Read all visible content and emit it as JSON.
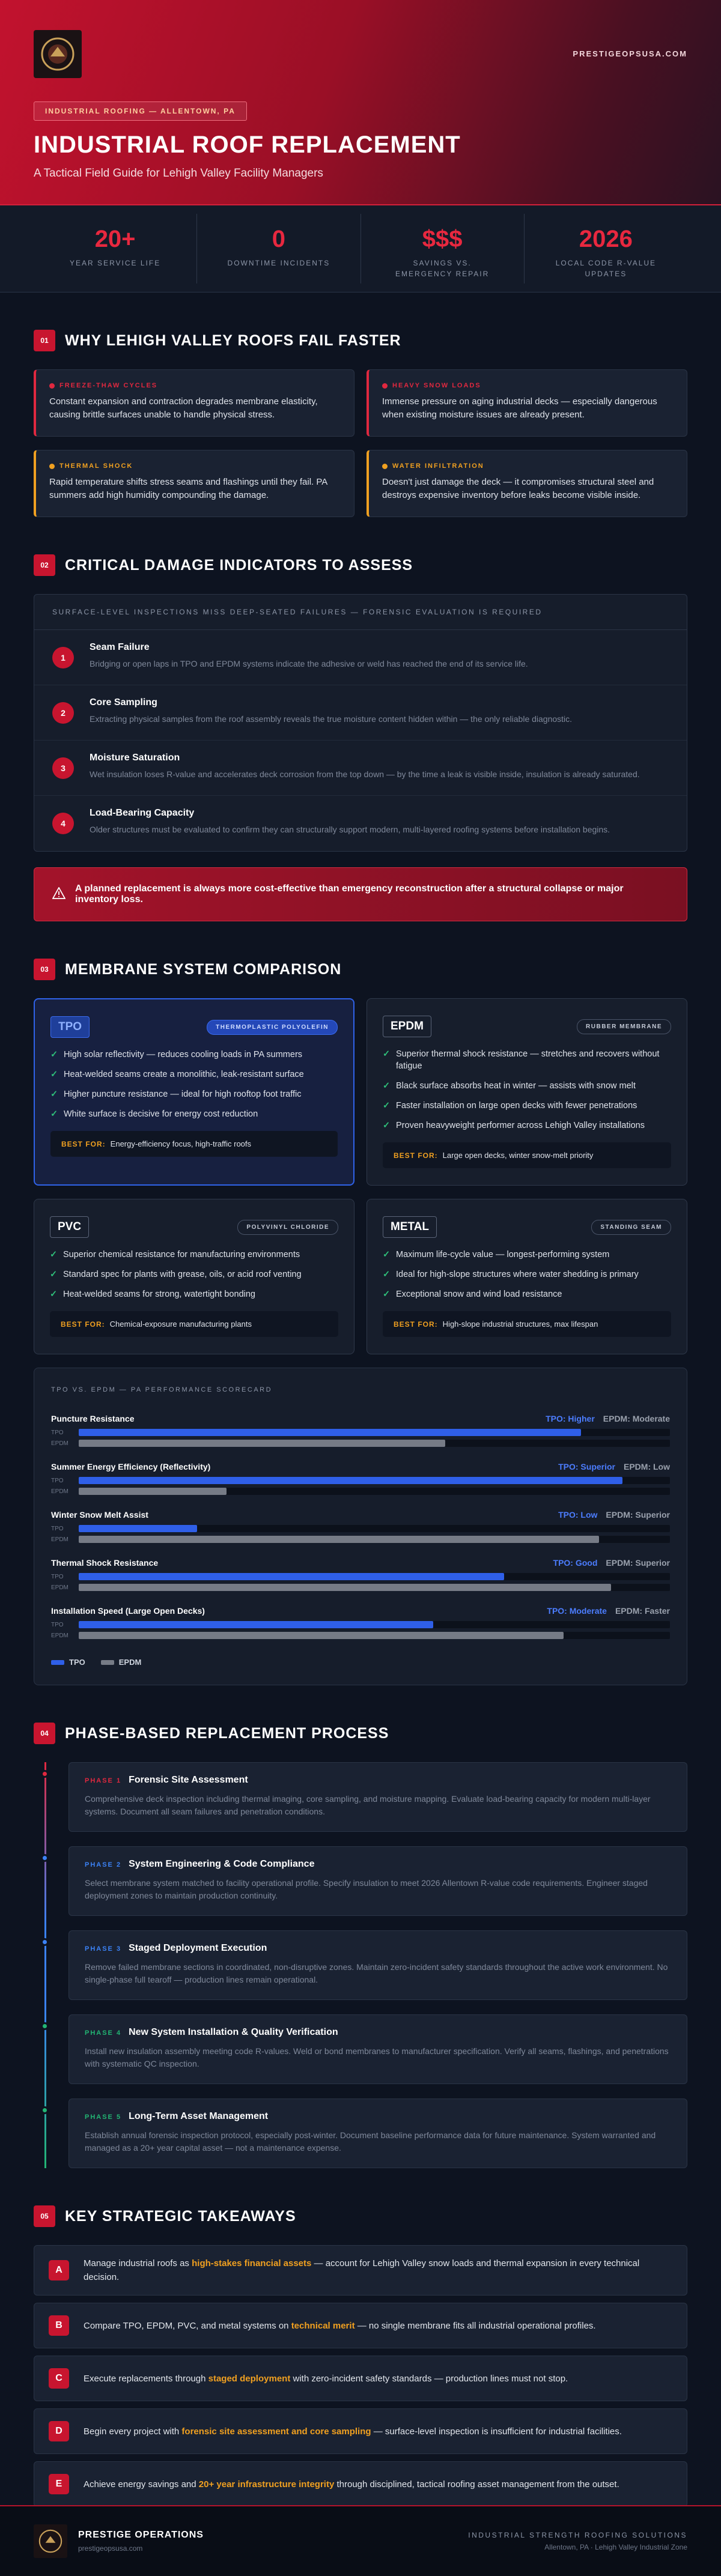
{
  "header": {
    "site": "PRESTIGEOPSUSA.COM",
    "badge": "INDUSTRIAL ROOFING — ALLENTOWN, PA",
    "title": "INDUSTRIAL ROOF REPLACEMENT",
    "subtitle": "A Tactical Field Guide for Lehigh Valley Facility Managers"
  },
  "stats": [
    {
      "value": "20+",
      "label": "YEAR SERVICE LIFE"
    },
    {
      "value": "0",
      "label": "DOWNTIME INCIDENTS"
    },
    {
      "value": "$$$",
      "label": "SAVINGS VS. EMERGENCY REPAIR"
    },
    {
      "value": "2026",
      "label": "LOCAL CODE R-VALUE UPDATES"
    }
  ],
  "why": {
    "num": "01",
    "title": "WHY LEHIGH VALLEY ROOFS FAIL FASTER",
    "cards": [
      {
        "label": "FREEZE-THAW CYCLES",
        "color": "#e0283f",
        "text": "Constant expansion and contraction degrades membrane elasticity, causing brittle surfaces unable to handle physical stress."
      },
      {
        "label": "HEAVY SNOW LOADS",
        "color": "#e0283f",
        "text": "Immense pressure on aging industrial decks — especially dangerous when existing moisture issues are already present."
      },
      {
        "label": "THERMAL SHOCK",
        "color": "#f0a020",
        "text": "Rapid temperature shifts stress seams and flashings until they fail. PA summers add high humidity compounding the damage."
      },
      {
        "label": "WATER INFILTRATION",
        "color": "#f0a020",
        "text": "Doesn't just damage the deck — it compromises structural steel and destroys expensive inventory before leaks become visible inside."
      }
    ]
  },
  "damage": {
    "num": "02",
    "title": "CRITICAL DAMAGE INDICATORS TO ASSESS",
    "box_header": "SURFACE-LEVEL INSPECTIONS MISS DEEP-SEATED FAILURES — FORENSIC EVALUATION IS REQUIRED",
    "items": [
      {
        "num": "1",
        "title": "Seam Failure",
        "text": "Bridging or open laps in TPO and EPDM systems indicate the adhesive or weld has reached the end of its service life."
      },
      {
        "num": "2",
        "title": "Core Sampling",
        "text": "Extracting physical samples from the roof assembly reveals the true moisture content hidden within — the only reliable diagnostic."
      },
      {
        "num": "3",
        "title": "Moisture Saturation",
        "text": "Wet insulation loses R-value and accelerates deck corrosion from the top down — by the time a leak is visible inside, insulation is already saturated."
      },
      {
        "num": "4",
        "title": "Load-Bearing Capacity",
        "text": "Older structures must be evaluated to confirm they can structurally support modern, multi-layered roofing systems before installation begins."
      }
    ],
    "callout": "A planned replacement is always more cost-effective than emergency reconstruction after a structural collapse or major inventory loss."
  },
  "membranes": {
    "num": "03",
    "title": "MEMBRANE SYSTEM COMPARISON",
    "best_label": "BEST FOR:",
    "cards": [
      {
        "name": "TPO",
        "tag": "THERMOPLASTIC POLYOLEFIN",
        "featured": true,
        "items": [
          "High solar reflectivity — reduces cooling loads in PA summers",
          "Heat-welded seams create a monolithic, leak-resistant surface",
          "Higher puncture resistance — ideal for high rooftop foot traffic",
          "White surface is decisive for energy cost reduction"
        ],
        "best": "Energy-efficiency focus, high-traffic roofs"
      },
      {
        "name": "EPDM",
        "tag": "RUBBER MEMBRANE",
        "featured": false,
        "items": [
          "Superior thermal shock resistance — stretches and recovers without fatigue",
          "Black surface absorbs heat in winter — assists with snow melt",
          "Faster installation on large open decks with fewer penetrations",
          "Proven heavyweight performer across Lehigh Valley installations"
        ],
        "best": "Large open decks, winter snow-melt priority"
      },
      {
        "name": "PVC",
        "tag": "POLYVINYL CHLORIDE",
        "featured": false,
        "items": [
          "Superior chemical resistance for manufacturing environments",
          "Standard spec for plants with grease, oils, or acid roof venting",
          "Heat-welded seams for strong, watertight bonding"
        ],
        "best": "Chemical-exposure manufacturing plants"
      },
      {
        "name": "METAL",
        "tag": "STANDING SEAM",
        "featured": false,
        "items": [
          "Maximum life-cycle value — longest-performing system",
          "Ideal for high-slope structures where water shedding is primary",
          "Exceptional snow and wind load resistance"
        ],
        "best": "High-slope industrial structures, max lifespan"
      }
    ]
  },
  "scorecard": {
    "title": "TPO VS. EPDM — PA PERFORMANCE SCORECARD",
    "tpo_name": "TPO",
    "epdm_name": "EPDM",
    "tpo_color": "#2f5fe8",
    "epdm_color": "#767b86",
    "rows": [
      {
        "label": "Puncture Resistance",
        "tpo_label": "TPO: Higher",
        "epdm_label": "EPDM: Moderate",
        "tpo": 85,
        "epdm": 62
      },
      {
        "label": "Summer Energy Efficiency (Reflectivity)",
        "tpo_label": "TPO: Superior",
        "epdm_label": "EPDM: Low",
        "tpo": 92,
        "epdm": 25
      },
      {
        "label": "Winter Snow Melt Assist",
        "tpo_label": "TPO: Low",
        "epdm_label": "EPDM: Superior",
        "tpo": 20,
        "epdm": 88
      },
      {
        "label": "Thermal Shock Resistance",
        "tpo_label": "TPO: Good",
        "epdm_label": "EPDM: Superior",
        "tpo": 72,
        "epdm": 90
      },
      {
        "label": "Installation Speed (Large Open Decks)",
        "tpo_label": "TPO: Moderate",
        "epdm_label": "EPDM: Faster",
        "tpo": 60,
        "epdm": 82
      }
    ]
  },
  "process": {
    "num": "04",
    "title": "PHASE-BASED REPLACEMENT PROCESS",
    "phases": [
      {
        "phase": "PHASE 1",
        "title": "Forensic Site Assessment",
        "color": "#e0283f",
        "text": "Comprehensive deck inspection including thermal imaging, core sampling, and moisture mapping. Evaluate load-bearing capacity for modern multi-layer systems. Document all seam failures and penetration conditions."
      },
      {
        "phase": "PHASE 2",
        "title": "System Engineering & Code Compliance",
        "color": "#3b82f6",
        "text": "Select membrane system matched to facility operational profile. Specify insulation to meet 2026 Allentown R-value code requirements. Engineer staged deployment zones to maintain production continuity."
      },
      {
        "phase": "PHASE 3",
        "title": "Staged Deployment Execution",
        "color": "#3b82f6",
        "text": "Remove failed membrane sections in coordinated, non-disruptive zones. Maintain zero-incident safety standards throughout the active work environment. No single-phase full tearoff — production lines remain operational."
      },
      {
        "phase": "PHASE 4",
        "title": "New System Installation & Quality Verification",
        "color": "#22b573",
        "text": "Install new insulation assembly meeting code R-values. Weld or bond membranes to manufacturer specification. Verify all seams, flashings, and penetrations with systematic QC inspection."
      },
      {
        "phase": "PHASE 5",
        "title": "Long-Term Asset Management",
        "color": "#22b573",
        "text": "Establish annual forensic inspection protocol, especially post-winter. Document baseline performance data for future maintenance. System warranted and managed as a 20+ year capital asset — not a maintenance expense."
      }
    ]
  },
  "takeaways": {
    "num": "05",
    "title": "KEY STRATEGIC TAKEAWAYS",
    "items": [
      {
        "letter": "A",
        "before": "Manage industrial roofs as ",
        "highlight": "high-stakes financial assets",
        "after": " — account for Lehigh Valley snow loads and thermal expansion in every technical decision."
      },
      {
        "letter": "B",
        "before": "Compare TPO, EPDM, PVC, and metal systems on ",
        "highlight": "technical merit",
        "after": " — no single membrane fits all industrial operational profiles."
      },
      {
        "letter": "C",
        "before": "Execute replacements through ",
        "highlight": "staged deployment",
        "after": " with zero-incident safety standards — production lines must not stop."
      },
      {
        "letter": "D",
        "before": "Begin every project with ",
        "highlight": "forensic site assessment and core sampling",
        "after": " — surface-level inspection is insufficient for industrial facilities."
      },
      {
        "letter": "E",
        "before": "Achieve energy savings and ",
        "highlight": "20+ year infrastructure integrity",
        "after": " through disciplined, tactical roofing asset management from the outset."
      }
    ]
  },
  "footer": {
    "brand": "PRESTIGE OPERATIONS",
    "site": "prestigeopsusa.com",
    "tagline": "INDUSTRIAL STRENGTH ROOFING SOLUTIONS",
    "location": "Allentown, PA · Lehigh Valley Industrial Zone"
  }
}
